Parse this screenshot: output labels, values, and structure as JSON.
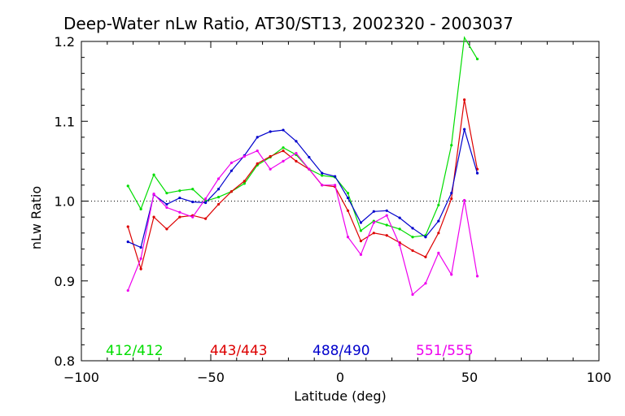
{
  "chart_data": {
    "type": "line",
    "title": "Deep-Water nLw Ratio, AT30/ST13, 2002320 - 2003037",
    "xlabel": "Latitude (deg)",
    "ylabel": "nLw Ratio",
    "xlim": [
      -100,
      100
    ],
    "ylim": [
      0.8,
      1.2
    ],
    "x_ticks": [
      -100,
      -50,
      0,
      50,
      100
    ],
    "x_tick_labels": [
      "−100",
      "−50",
      "0",
      "50",
      "100"
    ],
    "y_ticks": [
      0.8,
      0.9,
      1.0,
      1.1,
      1.2
    ],
    "y_tick_labels": [
      "0.8",
      "0.9",
      "1.0",
      "1.1",
      "1.2"
    ],
    "reference_line": 1.0,
    "grid": false,
    "legend_position": "bottom",
    "x": [
      -82,
      -77,
      -72,
      -67,
      -62,
      -57,
      -52,
      -47,
      -42,
      -37,
      -32,
      -27,
      -22,
      -17,
      -12,
      -7,
      -2,
      3,
      8,
      13,
      18,
      23,
      28,
      33,
      38,
      43,
      48,
      53
    ],
    "series": [
      {
        "name": "412/412",
        "color": "#00dd00",
        "values": [
          1.019,
          0.99,
          1.033,
          1.01,
          1.013,
          1.015,
          1.0,
          1.005,
          1.012,
          1.022,
          1.045,
          1.055,
          1.067,
          1.058,
          1.04,
          1.032,
          1.03,
          1.01,
          0.963,
          0.975,
          0.97,
          0.965,
          0.955,
          0.957,
          0.995,
          1.07,
          1.205,
          1.178
        ]
      },
      {
        "name": "443/443",
        "color": "#dd0000",
        "values": [
          0.968,
          0.915,
          0.98,
          0.965,
          0.98,
          0.982,
          0.978,
          0.996,
          1.012,
          1.025,
          1.047,
          1.056,
          1.063,
          1.05,
          1.04,
          1.02,
          1.018,
          0.988,
          0.95,
          0.96,
          0.957,
          0.948,
          0.938,
          0.93,
          0.96,
          1.003,
          1.127,
          1.04
        ]
      },
      {
        "name": "488/490",
        "color": "#0000cc",
        "values": [
          0.949,
          0.942,
          1.008,
          0.996,
          1.004,
          0.999,
          0.998,
          1.015,
          1.038,
          1.057,
          1.08,
          1.087,
          1.089,
          1.075,
          1.055,
          1.035,
          1.031,
          1.004,
          0.973,
          0.987,
          0.988,
          0.979,
          0.966,
          0.955,
          0.975,
          1.01,
          1.09,
          1.035
        ]
      },
      {
        "name": "551/555",
        "color": "#ee00ee",
        "values": [
          0.888,
          0.928,
          1.009,
          0.992,
          0.986,
          0.98,
          1.003,
          1.028,
          1.048,
          1.056,
          1.063,
          1.04,
          1.05,
          1.06,
          1.04,
          1.02,
          1.02,
          0.955,
          0.933,
          0.973,
          0.982,
          0.945,
          0.883,
          0.897,
          0.935,
          0.908,
          1.001,
          0.906
        ]
      }
    ]
  }
}
